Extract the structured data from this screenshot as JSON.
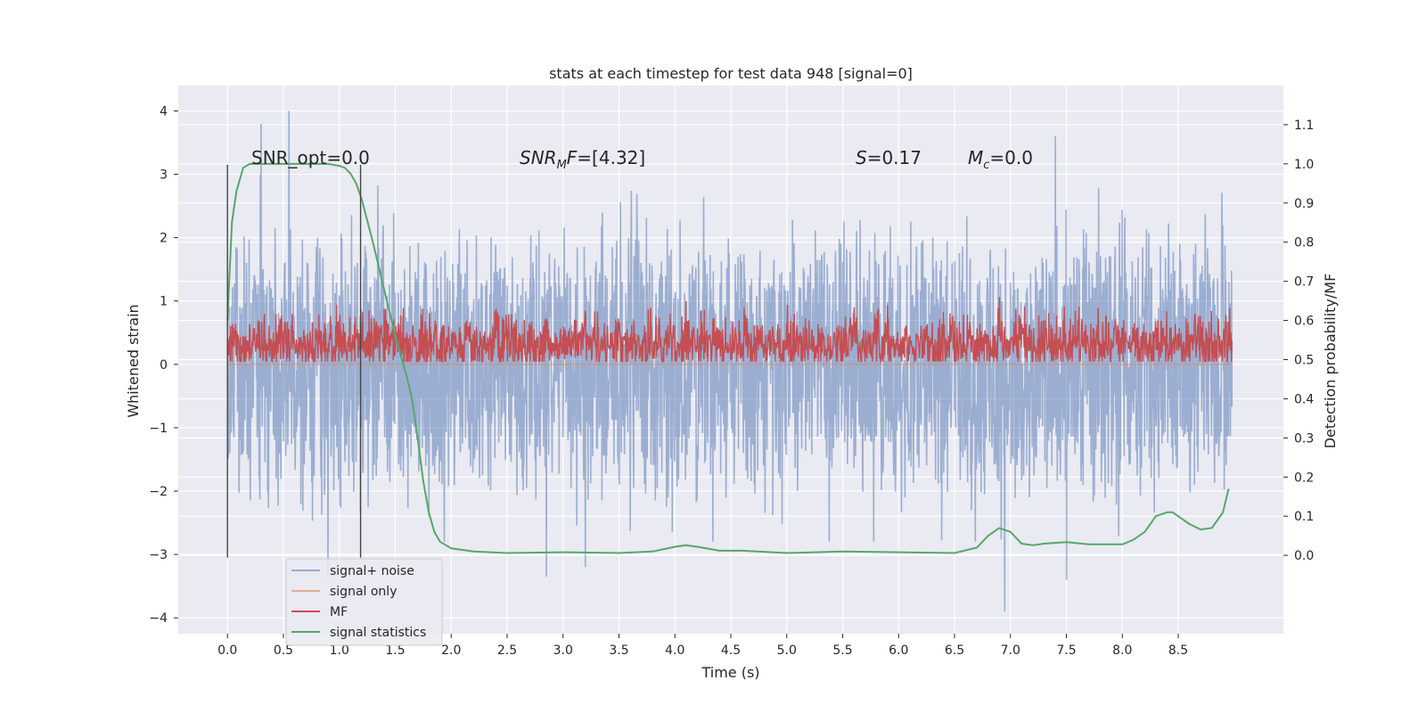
{
  "chart_data": {
    "type": "line",
    "title": "stats at each timestep for test data 948 [signal=0]",
    "xlabel": "Time (s)",
    "ylabel": "Whitened strain",
    "y2label": "Detection probability/MF",
    "xlim": [
      -0.44,
      9.44
    ],
    "ylim": [
      -4.25,
      4.4
    ],
    "y2lim": [
      -0.2,
      1.2
    ],
    "xticks": [
      0.0,
      0.5,
      1.0,
      1.5,
      2.0,
      2.5,
      3.0,
      3.5,
      4.0,
      4.5,
      5.0,
      5.5,
      6.0,
      6.5,
      7.0,
      7.5,
      8.0,
      8.5
    ],
    "xtick_labels": [
      "0.0",
      "0.5",
      "1.0",
      "1.5",
      "2.0",
      "2.5",
      "3.0",
      "3.5",
      "4.0",
      "4.5",
      "5.0",
      "5.5",
      "6.0",
      "6.5",
      "7.0",
      "7.5",
      "8.0",
      "8.5"
    ],
    "yticks": [
      -4,
      -3,
      -2,
      -1,
      0,
      1,
      2,
      3,
      4
    ],
    "ytick_labels": [
      "−4",
      "−3",
      "−2",
      "−1",
      "0",
      "1",
      "2",
      "3",
      "4"
    ],
    "y2ticks": [
      0.0,
      0.1,
      0.2,
      0.3,
      0.4,
      0.5,
      0.6,
      0.7,
      0.8,
      0.9,
      1.0,
      1.1
    ],
    "y2tick_labels": [
      "0.0",
      "0.1",
      "0.2",
      "0.3",
      "0.4",
      "0.5",
      "0.6",
      "0.7",
      "0.8",
      "0.9",
      "1.0",
      "1.1"
    ],
    "grid": true,
    "legend_position": "lower-left",
    "annotations": {
      "snr_opt": "SNR_opt=0.0",
      "snr_mf_italic": "SNR",
      "snr_mf_sub": "M",
      "snr_mf_mid": "F",
      "snr_mf_value": "=[4.32]",
      "s_italic": "S",
      "s_value": "=0.17",
      "mc_italic": "M",
      "mc_sub": "c",
      "mc_value": "=0.0"
    },
    "vertical_lines_x": [
      0.0,
      1.19
    ],
    "series": [
      {
        "name": "signal+ noise",
        "color": "#4c72b0",
        "axis": "left",
        "x_range": [
          0.0,
          8.98
        ],
        "typical_range": [
          -1.8,
          1.9
        ],
        "extremes": [
          [
            0.55,
            4.0
          ],
          [
            7.4,
            3.6
          ],
          [
            0.3,
            3.8
          ],
          [
            6.95,
            -3.9
          ],
          [
            2.85,
            -3.35
          ],
          [
            7.5,
            -3.4
          ],
          [
            0.9,
            -3.4
          ],
          [
            3.2,
            -3.2
          ]
        ]
      },
      {
        "name": "signal only",
        "color": "#dd8452",
        "axis": "left",
        "x": [
          0.0,
          8.98
        ],
        "y": [
          0.0,
          0.0
        ]
      },
      {
        "name": "MF",
        "color": "#c44e52",
        "axis": "right",
        "x_range": [
          0.0,
          8.98
        ],
        "typical_range": [
          0.5,
          0.58
        ],
        "extremes": [
          [
            6.9,
            0.66
          ],
          [
            1.4,
            0.63
          ],
          [
            4.1,
            0.65
          ],
          [
            2.4,
            0.63
          ]
        ]
      },
      {
        "name": "signal statistics",
        "color": "#55a868",
        "axis": "right",
        "x": [
          0.0,
          0.04,
          0.08,
          0.14,
          0.2,
          0.3,
          0.5,
          0.7,
          0.9,
          1.0,
          1.05,
          1.1,
          1.15,
          1.2,
          1.3,
          1.4,
          1.5,
          1.6,
          1.65,
          1.7,
          1.75,
          1.8,
          1.85,
          1.9,
          2.0,
          2.2,
          2.5,
          3.0,
          3.5,
          3.8,
          4.0,
          4.1,
          4.2,
          4.4,
          4.6,
          5.0,
          5.5,
          6.0,
          6.5,
          6.7,
          6.8,
          6.9,
          7.0,
          7.1,
          7.2,
          7.3,
          7.5,
          7.7,
          8.0,
          8.1,
          8.2,
          8.3,
          8.4,
          8.45,
          8.5,
          8.6,
          8.7,
          8.8,
          8.9,
          8.95
        ],
        "y": [
          0.6,
          0.85,
          0.93,
          0.99,
          1.0,
          1.0,
          1.0,
          1.0,
          1.0,
          0.995,
          0.99,
          0.975,
          0.95,
          0.91,
          0.8,
          0.68,
          0.56,
          0.46,
          0.4,
          0.3,
          0.19,
          0.11,
          0.06,
          0.035,
          0.018,
          0.01,
          0.006,
          0.008,
          0.006,
          0.01,
          0.022,
          0.026,
          0.022,
          0.012,
          0.012,
          0.006,
          0.01,
          0.008,
          0.006,
          0.02,
          0.05,
          0.07,
          0.06,
          0.03,
          0.026,
          0.03,
          0.034,
          0.028,
          0.028,
          0.04,
          0.06,
          0.1,
          0.11,
          0.11,
          0.1,
          0.08,
          0.066,
          0.07,
          0.11,
          0.17
        ]
      }
    ]
  }
}
